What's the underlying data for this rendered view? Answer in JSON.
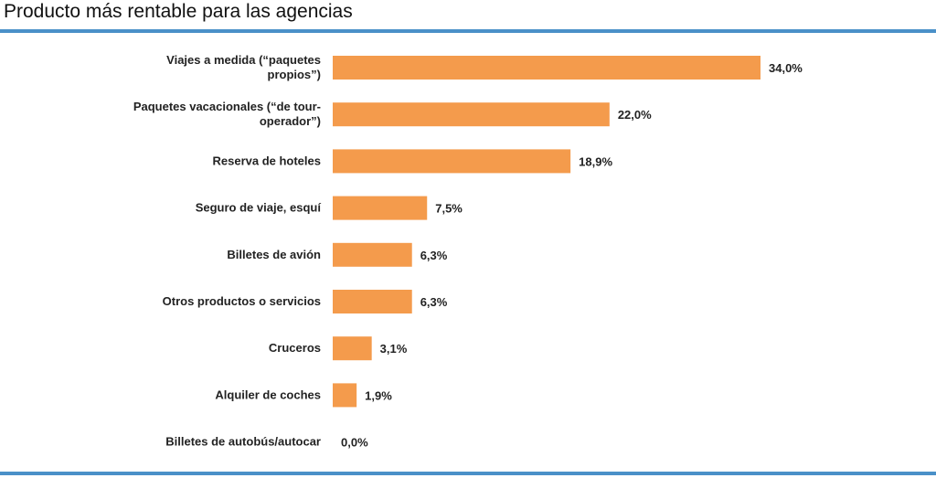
{
  "page": {
    "title": "Producto más rentable para las agencias",
    "rule_color": "#4a90c8"
  },
  "chart_data": {
    "type": "bar",
    "orientation": "horizontal",
    "title": "",
    "xlabel": "",
    "ylabel": "",
    "grid": false,
    "legend": "none",
    "bar_color": "#f49b4c",
    "xlim": [
      0,
      34
    ],
    "categories": [
      [
        "Viajes a medida (“paquetes",
        "propios”)"
      ],
      [
        "Paquetes vacacionales (“de tour-",
        "operador”)"
      ],
      [
        "Reserva de hoteles"
      ],
      [
        "Seguro de viaje, esquí"
      ],
      [
        "Billetes de avión"
      ],
      [
        "Otros productos o servicios"
      ],
      [
        "Cruceros"
      ],
      [
        "Alquiler de coches"
      ],
      [
        "Billetes de autobús/autocar"
      ]
    ],
    "values": [
      34.0,
      22.0,
      18.9,
      7.5,
      6.3,
      6.3,
      3.1,
      1.9,
      0.0
    ],
    "value_labels": [
      "34,0%",
      "22,0%",
      "18,9%",
      "7,5%",
      "6,3%",
      "6,3%",
      "3,1%",
      "1,9%",
      "0,0%"
    ]
  }
}
